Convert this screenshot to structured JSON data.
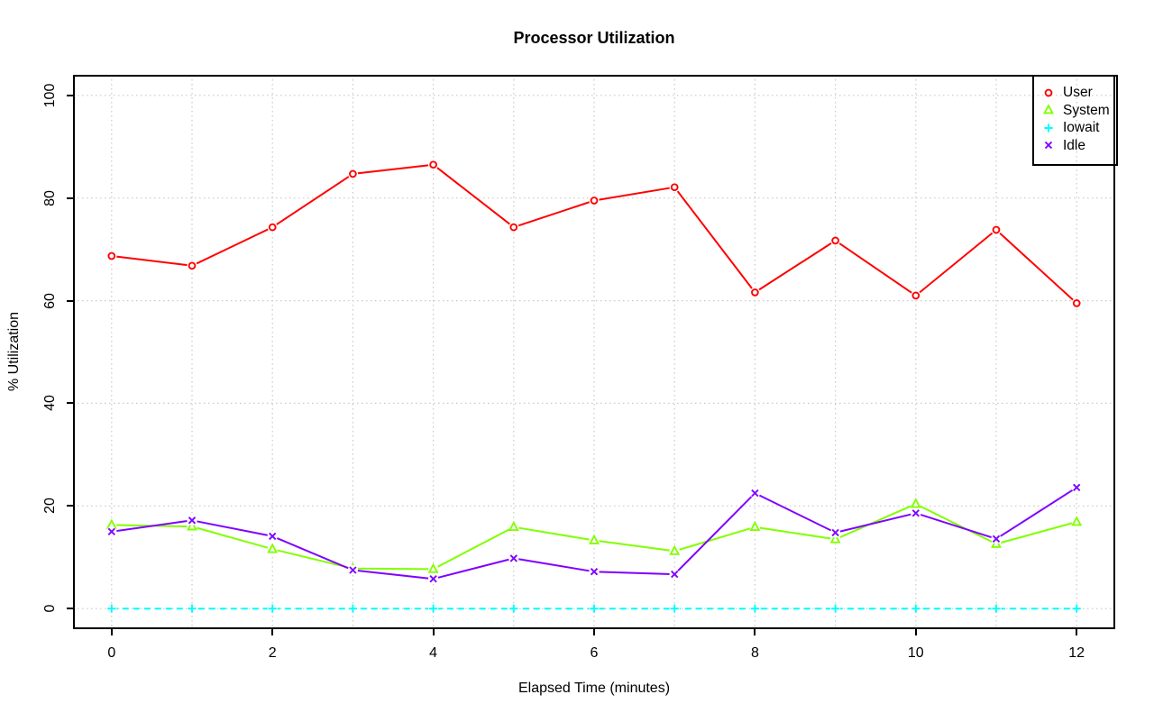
{
  "title": "Processor Utilization",
  "chart_data": {
    "type": "line",
    "title": "Processor Utilization",
    "xlabel": "Elapsed Time (minutes)",
    "ylabel": "% Utilization",
    "x": [
      0,
      1,
      2,
      3,
      4,
      5,
      6,
      7,
      8,
      9,
      10,
      11,
      12
    ],
    "xlim": [
      -0.48,
      12.48
    ],
    "ylim": [
      -4,
      104
    ],
    "xticks": [
      0,
      2,
      4,
      6,
      8,
      10,
      12
    ],
    "yticks": [
      0,
      20,
      40,
      60,
      80,
      100
    ],
    "xgrid": [
      0,
      1,
      2,
      3,
      4,
      5,
      6,
      7,
      8,
      9,
      10,
      11,
      12
    ],
    "ygrid": [
      0,
      20,
      40,
      60,
      80,
      100
    ],
    "grid": "dotted light-gray, vertical at every integer x, horizontal at y ticks",
    "legend_position": "topright",
    "series": [
      {
        "name": "User",
        "color": "#FF0000",
        "marker": "circle",
        "line": "solid",
        "values": [
          68.7,
          66.8,
          74.3,
          84.7,
          86.5,
          74.3,
          79.5,
          82.1,
          61.6,
          71.7,
          61.0,
          73.8,
          59.5
        ]
      },
      {
        "name": "System",
        "color": "#80FF00",
        "marker": "triangle",
        "line": "solid",
        "values": [
          16.3,
          16.0,
          11.6,
          7.8,
          7.7,
          15.9,
          13.3,
          11.2,
          15.9,
          13.5,
          20.4,
          12.6,
          16.9
        ]
      },
      {
        "name": "Iowait",
        "color": "#00FFFF",
        "marker": "plus",
        "line": "dashed",
        "values": [
          0,
          0,
          0,
          0,
          0,
          0,
          0,
          0,
          0,
          0,
          0,
          0,
          0
        ]
      },
      {
        "name": "Idle",
        "color": "#8000FF",
        "marker": "x",
        "line": "solid",
        "values": [
          15.0,
          17.2,
          14.1,
          7.5,
          5.8,
          9.8,
          7.2,
          6.7,
          22.5,
          14.8,
          18.6,
          13.6,
          23.6
        ]
      }
    ]
  }
}
